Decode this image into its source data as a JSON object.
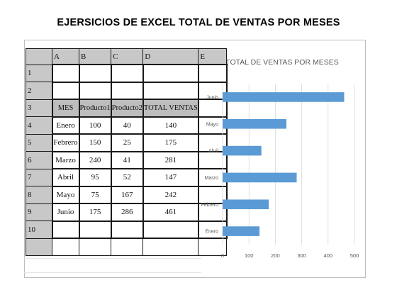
{
  "page_title": "EJERSICIOS DE EXCEL TOTAL DE VENTAS POR MESES",
  "spreadsheet": {
    "columns": [
      "A",
      "B",
      "C",
      "D",
      "E"
    ],
    "row_numbers": [
      "1",
      "2",
      "3",
      "4",
      "5",
      "6",
      "7",
      "8",
      "9",
      "10",
      ""
    ],
    "headers": [
      "MES",
      "Producto1",
      "Producto2",
      "TOTAL VENTAS"
    ],
    "rows": [
      [
        "Enero",
        "100",
        "40",
        "140"
      ],
      [
        "Febrero",
        "150",
        "25",
        "175"
      ],
      [
        "Marzo",
        "240",
        "41",
        "281"
      ],
      [
        "Abril",
        "95",
        "52",
        "147"
      ],
      [
        "Mayo",
        "75",
        "167",
        "242"
      ],
      [
        "Junio",
        "175",
        "286",
        "461"
      ]
    ]
  },
  "chart_data": {
    "type": "bar",
    "orientation": "horizontal",
    "title": "TOTAL DE VENTAS POR MESES",
    "categories": [
      "Enero",
      "Febrero",
      "Marzo",
      "Abril",
      "Mayo",
      "Junio"
    ],
    "values": [
      140,
      175,
      281,
      147,
      242,
      461
    ],
    "xlim": [
      0,
      500
    ],
    "xticks": [
      "0",
      "100",
      "200",
      "300",
      "400",
      "500"
    ],
    "bar_color": "#5b9bd5",
    "grid": true
  }
}
